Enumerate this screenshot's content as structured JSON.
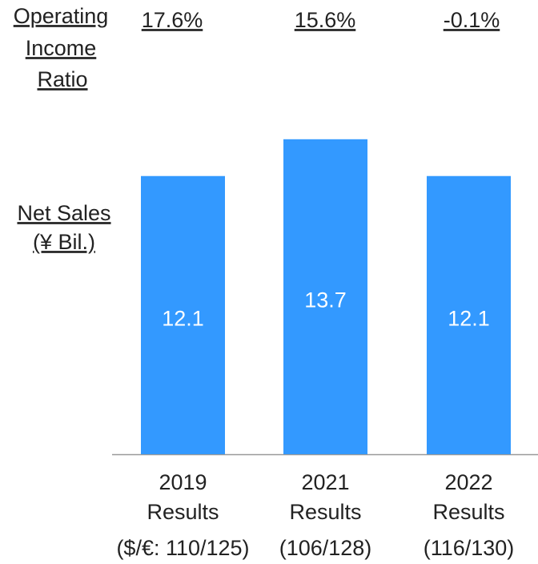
{
  "chart_data": {
    "type": "bar",
    "categories": [
      [
        "2019",
        "Results",
        "($/€: 110/125)"
      ],
      [
        "2021",
        "Results",
        "(106/128)"
      ],
      [
        "2022",
        "Results",
        "(116/130)"
      ]
    ],
    "values": [
      12.1,
      13.7,
      12.1
    ],
    "color": "#3399ff",
    "y_label": [
      "Net Sales",
      "(¥ Bil.)"
    ],
    "operating_income_ratio": {
      "label": [
        "Operating",
        "Income",
        "Ratio"
      ],
      "values": [
        17.6,
        15.6,
        -0.1
      ],
      "value_labels": [
        "17.6%",
        "15.6%",
        "-0.1%"
      ]
    }
  }
}
